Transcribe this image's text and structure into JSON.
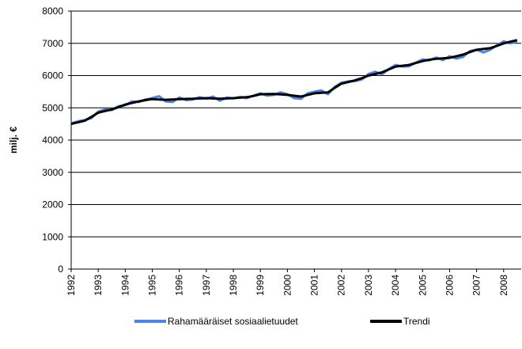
{
  "chart_data": {
    "type": "line",
    "y_label": "milj. €",
    "x": [
      1992,
      1992.25,
      1992.5,
      1992.75,
      1993,
      1993.25,
      1993.5,
      1993.75,
      1994,
      1994.25,
      1994.5,
      1994.75,
      1995,
      1995.25,
      1995.5,
      1995.75,
      1996,
      1996.25,
      1996.5,
      1996.75,
      1997,
      1997.25,
      1997.5,
      1997.75,
      1998,
      1998.25,
      1998.5,
      1998.75,
      1999,
      1999.25,
      1999.5,
      1999.75,
      2000,
      2000.25,
      2000.5,
      2000.75,
      2001,
      2001.25,
      2001.5,
      2001.75,
      2002,
      2002.25,
      2002.5,
      2002.75,
      2003,
      2003.25,
      2003.5,
      2003.75,
      2004,
      2004.25,
      2004.5,
      2004.75,
      2005,
      2005.25,
      2005.5,
      2005.75,
      2006,
      2006.25,
      2006.5,
      2006.75,
      2007,
      2007.25,
      2007.5,
      2007.75,
      2008,
      2008.25,
      2008.5
    ],
    "series": [
      {
        "name": "Rahamääräiset sosiaalietuudet",
        "color": "#4a86e8",
        "width": 3,
        "values": [
          4520,
          4580,
          4620,
          4680,
          4880,
          4950,
          4930,
          5050,
          5080,
          5200,
          5180,
          5260,
          5300,
          5360,
          5200,
          5180,
          5320,
          5240,
          5260,
          5330,
          5280,
          5350,
          5220,
          5320,
          5290,
          5340,
          5300,
          5380,
          5450,
          5380,
          5400,
          5480,
          5420,
          5300,
          5280,
          5450,
          5500,
          5540,
          5420,
          5650,
          5780,
          5820,
          5830,
          5880,
          6050,
          6120,
          6040,
          6200,
          6330,
          6280,
          6290,
          6400,
          6500,
          6470,
          6560,
          6480,
          6600,
          6530,
          6580,
          6760,
          6800,
          6720,
          6800,
          6940,
          7060,
          7000,
          7050
        ]
      },
      {
        "name": "Trendi",
        "color": "#000000",
        "width": 3,
        "values": [
          4500,
          4550,
          4600,
          4720,
          4850,
          4900,
          4950,
          5020,
          5100,
          5150,
          5200,
          5240,
          5270,
          5260,
          5250,
          5260,
          5270,
          5275,
          5280,
          5290,
          5300,
          5290,
          5280,
          5290,
          5300,
          5315,
          5330,
          5370,
          5420,
          5425,
          5430,
          5415,
          5400,
          5375,
          5350,
          5400,
          5450,
          5465,
          5480,
          5620,
          5750,
          5800,
          5850,
          5920,
          6000,
          6050,
          6100,
          6190,
          6280,
          6305,
          6330,
          6390,
          6450,
          6490,
          6520,
          6535,
          6550,
          6600,
          6650,
          6730,
          6800,
          6825,
          6850,
          6920,
          7000,
          7050,
          7100
        ]
      }
    ],
    "xlim": [
      1992,
      2008.65
    ],
    "xticks": [
      1992,
      1993,
      1994,
      1995,
      1996,
      1997,
      1998,
      1999,
      2000,
      2001,
      2002,
      2003,
      2004,
      2005,
      2006,
      2007,
      2008
    ],
    "ylim": [
      0,
      8000
    ],
    "yticks": [
      0,
      1000,
      2000,
      3000,
      4000,
      5000,
      6000,
      7000,
      8000
    ],
    "grid": true,
    "legend": "bottom"
  }
}
